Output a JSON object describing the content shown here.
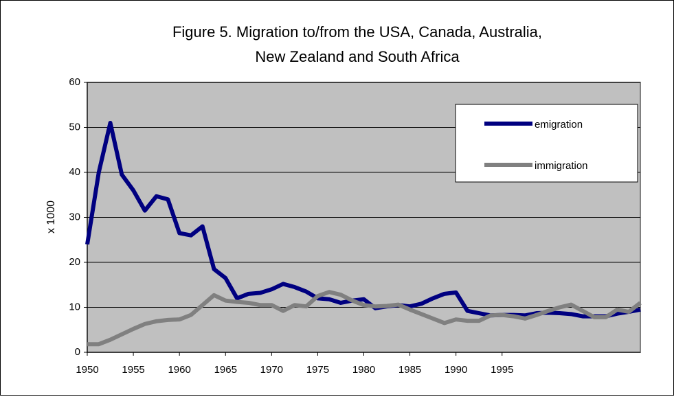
{
  "chart_data": {
    "type": "line",
    "title": [
      "Figure 5. Migration to/from the USA, Canada, Australia,",
      "New Zealand and South Africa"
    ],
    "y_label": "x 1000",
    "categories": [
      "1950",
      null,
      null,
      null,
      "1955",
      null,
      null,
      null,
      "1960",
      null,
      null,
      null,
      "1965",
      null,
      null,
      null,
      "1970",
      null,
      null,
      null,
      "1975",
      null,
      null,
      null,
      "1980",
      null,
      null,
      null,
      "1985",
      null,
      null,
      null,
      "1990",
      null,
      null,
      null,
      "1995",
      null,
      null,
      null,
      null,
      null,
      null,
      null,
      null,
      null,
      null,
      null,
      null
    ],
    "series": [
      {
        "name": "emigration",
        "color": "#000080",
        "values": [
          24,
          40,
          51,
          39.5,
          36,
          31.5,
          34.7,
          34,
          26.5,
          26,
          28,
          18.5,
          16.5,
          12,
          13,
          13.2,
          14,
          15.2,
          14.5,
          13.5,
          12,
          11.8,
          11,
          11.5,
          11.8,
          9.8,
          10.2,
          10.5,
          10.2,
          10.8,
          12,
          13,
          13.3,
          9.2,
          8.7,
          8.2,
          8.3,
          8.3,
          8.2,
          8.7,
          8.8,
          8.7,
          8.5,
          8,
          8,
          8,
          8.6,
          9,
          9.5
        ]
      },
      {
        "name": "immigration",
        "color": "#808080",
        "values": [
          1.8,
          1.8,
          2.8,
          4,
          5.2,
          6.3,
          6.9,
          7.2,
          7.3,
          8.3,
          10.5,
          12.7,
          11.5,
          11.2,
          11,
          10.5,
          10.5,
          9.2,
          10.5,
          10.2,
          12.5,
          13.4,
          12.8,
          11.5,
          10.5,
          10.2,
          10.3,
          10.6,
          9.5,
          8.5,
          7.5,
          6.5,
          7.3,
          7,
          7,
          8.2,
          8.3,
          8,
          7.5,
          8.3,
          9.2,
          10,
          10.6,
          9.2,
          7.8,
          7.8,
          9.5,
          9,
          11
        ]
      }
    ],
    "ylim": [
      0,
      60
    ],
    "yticks": [
      0,
      10,
      20,
      30,
      40,
      50,
      60
    ],
    "grid": true,
    "legend": "upper right",
    "plot_background": "#c0c0c0"
  }
}
